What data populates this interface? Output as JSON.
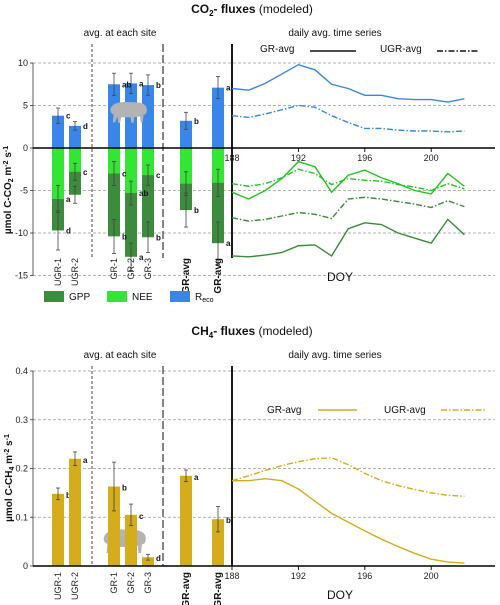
{
  "colors": {
    "gpp": "#3d8b3d",
    "nee": "#33e633",
    "reco": "#3a86e8",
    "ch4": "#d4ac1c",
    "nee_line": "#22c422",
    "gpp_line": "#3a8a3a",
    "reco_line": "#3a86e8",
    "animal": "#b3b3b3"
  },
  "icons": [
    "animal-silhouette-icon"
  ],
  "chart_data": [
    {
      "type": "bar",
      "panel": "co2",
      "title_parts": [
        "CO",
        "2",
        "- fluxes",
        " (modeled)"
      ],
      "ylabel_parts": [
        "µmol C-CO",
        "2",
        " m",
        "-2",
        " s",
        "-1"
      ],
      "section_labels": [
        "avg. at each site",
        "daily avg.  time series"
      ],
      "ylim": [
        -15,
        10
      ],
      "yticks": [
        10,
        5,
        0,
        -5,
        -10,
        -15
      ],
      "legend": [
        "GPP",
        "NEE",
        "R",
        "eco"
      ],
      "categories": [
        {
          "label": "UGR-1",
          "bold": false
        },
        {
          "label": "UGR-2",
          "bold": false
        },
        {
          "label": "GR-1",
          "bold": false
        },
        {
          "label": "GR-2",
          "bold": false
        },
        {
          "label": "GR-3",
          "bold": false
        },
        {
          "label": "UGR-avg",
          "bold": true
        },
        {
          "label": "GR-avg",
          "bold": true
        }
      ],
      "series": [
        {
          "key": "reco",
          "name": "R_eco",
          "values": [
            3.8,
            2.6,
            7.5,
            7.6,
            7.4,
            3.2,
            7.1
          ],
          "err": [
            0.9,
            0.5,
            1.3,
            1.2,
            1.2,
            1.0,
            1.3
          ],
          "letters": [
            "c",
            "d",
            "ab",
            "a",
            "b",
            "b",
            "a"
          ]
        },
        {
          "key": "nee",
          "name": "NEE",
          "values": [
            -6.0,
            -2.8,
            -3.0,
            -5.3,
            -3.2,
            -4.2,
            -4.1
          ],
          "err": [
            1.6,
            1.0,
            1.4,
            1.4,
            1.2,
            1.4,
            1.6
          ],
          "letters": [
            "a",
            "c",
            "c",
            "ab",
            "c",
            "",
            ""
          ]
        },
        {
          "key": "gpp",
          "name": "GPP",
          "values": [
            -9.7,
            -5.5,
            -10.4,
            -12.8,
            -10.5,
            -7.3,
            -11.2
          ],
          "err": [
            2.3,
            1.0,
            2.0,
            1.6,
            1.8,
            2.0,
            2.5
          ],
          "letters": [
            "d",
            "",
            "b",
            "a",
            "b",
            "b",
            "a"
          ]
        }
      ],
      "timeseries": {
        "xlabel": "DOY",
        "xlim": [
          188,
          203
        ],
        "xticks": [
          188,
          192,
          196,
          200
        ],
        "legend": [
          "GR-avg",
          "UGR-avg"
        ],
        "x": [
          188,
          189,
          190,
          191,
          192,
          193,
          194,
          195,
          196,
          197,
          198,
          199,
          200,
          201,
          202
        ],
        "series": [
          {
            "name": "GR-avg",
            "var": "reco",
            "values": [
              7.0,
              6.8,
              7.6,
              8.7,
              9.8,
              9.2,
              7.5,
              7.0,
              6.2,
              6.2,
              5.8,
              5.7,
              5.7,
              5.4,
              5.8
            ]
          },
          {
            "name": "UGR-avg",
            "var": "reco",
            "values": [
              3.8,
              3.6,
              4.0,
              4.5,
              5.0,
              4.8,
              3.8,
              3.0,
              2.3,
              2.3,
              2.1,
              2.0,
              2.0,
              1.9,
              2.0
            ]
          },
          {
            "name": "GR-avg",
            "var": "nee",
            "values": [
              -5.2,
              -6.0,
              -5.0,
              -3.6,
              -1.6,
              -2.2,
              -5.2,
              -3.2,
              -2.6,
              -3.5,
              -4.2,
              -5.0,
              -5.4,
              -3.0,
              -4.5
            ]
          },
          {
            "name": "UGR-avg",
            "var": "nee",
            "values": [
              -4.2,
              -4.5,
              -4.2,
              -3.5,
              -2.5,
              -3.0,
              -4.3,
              -3.6,
              -3.8,
              -3.9,
              -4.3,
              -4.6,
              -5.0,
              -4.2,
              -4.8
            ]
          },
          {
            "name": "UGR-avg",
            "var": "gpp",
            "values": [
              -8.2,
              -8.6,
              -8.4,
              -8.0,
              -7.6,
              -7.8,
              -8.3,
              -6.0,
              -5.8,
              -6.0,
              -6.3,
              -6.6,
              -7.0,
              -6.2,
              -6.9
            ]
          },
          {
            "name": "GR-avg",
            "var": "gpp",
            "values": [
              -12.7,
              -12.8,
              -12.6,
              -12.3,
              -11.5,
              -11.4,
              -12.7,
              -9.5,
              -8.8,
              -9.0,
              -10.0,
              -10.6,
              -11.2,
              -8.4,
              -10.2
            ]
          }
        ]
      }
    },
    {
      "type": "bar",
      "panel": "ch4",
      "title_parts": [
        "CH",
        "4",
        "- fluxes",
        " (modeled)"
      ],
      "ylabel_parts": [
        "µmol C-CH",
        "4",
        " m",
        "-2",
        " s",
        "-1"
      ],
      "section_labels": [
        "avg. at each site",
        "daily avg.  time series"
      ],
      "ylim": [
        0,
        0.4
      ],
      "yticks": [
        0.4,
        0.3,
        0.2,
        0.1,
        0
      ],
      "yticklabels": [
        "0.4",
        "0.3",
        "0.2",
        "0.1",
        "0"
      ],
      "categories": [
        {
          "label": "UGR-1",
          "bold": false
        },
        {
          "label": "UGR-2",
          "bold": false
        },
        {
          "label": "GR-1",
          "bold": false
        },
        {
          "label": "GR-2",
          "bold": false
        },
        {
          "label": "GR-3",
          "bold": false
        },
        {
          "label": "UGR-avg",
          "bold": true
        },
        {
          "label": "GR-avg",
          "bold": true
        }
      ],
      "series": [
        {
          "key": "ch4",
          "name": "CH4",
          "values": [
            0.148,
            0.22,
            0.163,
            0.105,
            0.018,
            0.185,
            0.096
          ],
          "err": [
            0.012,
            0.014,
            0.05,
            0.022,
            0.006,
            0.012,
            0.026
          ],
          "letters": [
            "bc",
            "a",
            "b",
            "c",
            "d",
            "a",
            "b"
          ]
        }
      ],
      "timeseries": {
        "xlabel": "DOY",
        "xlim": [
          188,
          203
        ],
        "xticks": [
          188,
          192,
          196,
          200
        ],
        "legend": [
          "GR-avg",
          "UGR-avg"
        ],
        "x": [
          188,
          189,
          190,
          191,
          192,
          193,
          194,
          195,
          196,
          197,
          198,
          199,
          200,
          201,
          202
        ],
        "series": [
          {
            "name": "GR-avg",
            "values": [
              0.175,
              0.175,
              0.179,
              0.175,
              0.158,
              0.133,
              0.108,
              0.09,
              0.072,
              0.055,
              0.04,
              0.026,
              0.014,
              0.008,
              0.006
            ]
          },
          {
            "name": "UGR-avg",
            "values": [
              0.175,
              0.185,
              0.196,
              0.206,
              0.214,
              0.22,
              0.222,
              0.208,
              0.19,
              0.175,
              0.165,
              0.157,
              0.15,
              0.145,
              0.143
            ]
          }
        ]
      }
    }
  ]
}
